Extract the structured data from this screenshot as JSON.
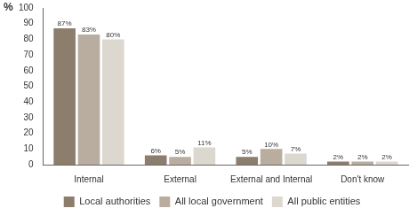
{
  "chart_data": {
    "type": "bar",
    "ylabel": "%",
    "categories": [
      "Internal",
      "External",
      "External and Internal",
      "Don't know"
    ],
    "series": [
      {
        "name": "Local authorities",
        "color": "#8c7d6c",
        "values": [
          87,
          6,
          5,
          2
        ],
        "value_labels": [
          "87%",
          "6%",
          "5%",
          "2%"
        ]
      },
      {
        "name": "All local government",
        "color": "#b8ad9f",
        "values": [
          83,
          5,
          10,
          2
        ],
        "value_labels": [
          "83%",
          "5%",
          "10%",
          "2%"
        ]
      },
      {
        "name": "All public entities",
        "color": "#dcd7cf",
        "values": [
          80,
          11,
          7,
          2
        ],
        "value_labels": [
          "80%",
          "11%",
          "7%",
          "2%"
        ]
      }
    ],
    "ylim": [
      0,
      100
    ],
    "yticks": [
      0,
      10,
      20,
      30,
      40,
      50,
      60,
      70,
      80,
      90,
      100
    ],
    "grid": false,
    "legend": "bottom",
    "data_labels": true
  }
}
